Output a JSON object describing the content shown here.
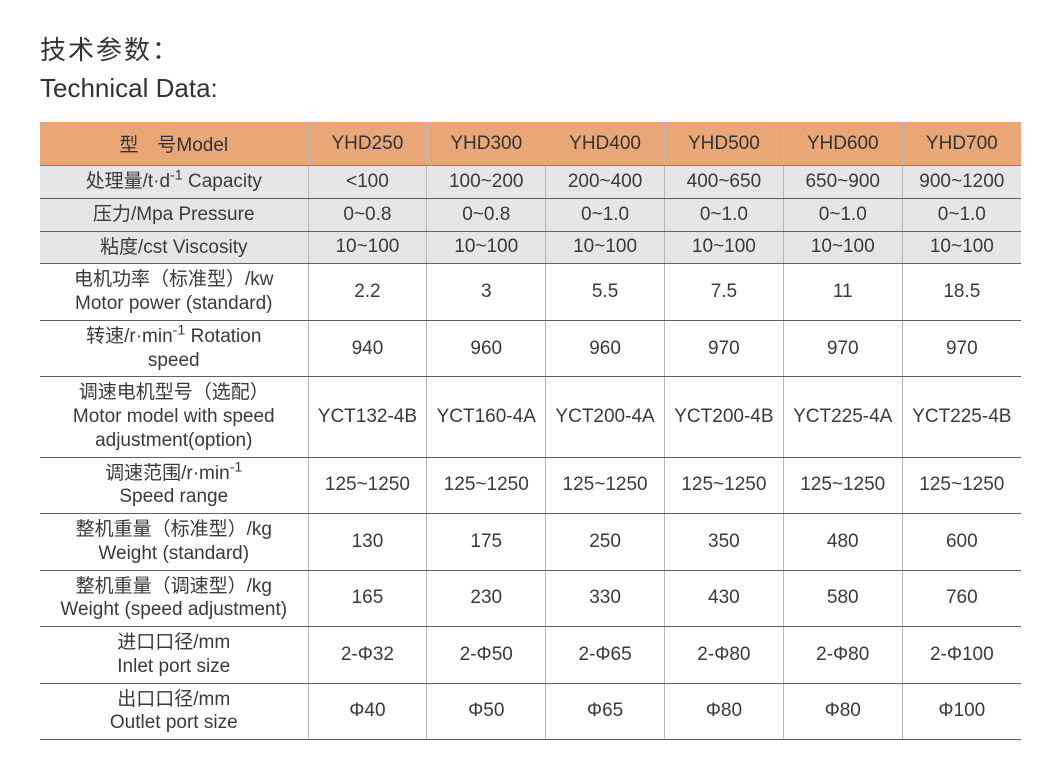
{
  "title_cn": "技术参数：",
  "title_en": "Technical Data:",
  "table": {
    "header_label": "型　号Model",
    "models": [
      "YHD250",
      "YHD300",
      "YHD400",
      "YHD500",
      "YHD600",
      "YHD700"
    ],
    "rows": [
      {
        "shade": "gray",
        "label_html": "处理量/t·d<span class=\"sup\">-1</span> Capacity",
        "cells": [
          "<100",
          "100~200",
          "200~400",
          "400~650",
          "650~900",
          "900~1200"
        ]
      },
      {
        "shade": "gray",
        "label_html": "压力/Mpa  Pressure",
        "cells": [
          "0~0.8",
          "0~0.8",
          "0~1.0",
          "0~1.0",
          "0~1.0",
          "0~1.0"
        ]
      },
      {
        "shade": "gray",
        "label_html": "粘度/cst   Viscosity",
        "cells": [
          "10~100",
          "10~100",
          "10~100",
          "10~100",
          "10~100",
          "10~100"
        ]
      },
      {
        "shade": "white",
        "label_html": "电机功率（标准型）/kw<br>Motor power (standard)",
        "cells": [
          "2.2",
          "3",
          "5.5",
          "7.5",
          "11",
          "18.5"
        ]
      },
      {
        "shade": "white",
        "label_html": "转速/r·min<span class=\"sup\">-1</span>  Rotation<br>speed",
        "cells": [
          "940",
          "960",
          "960",
          "970",
          "970",
          "970"
        ]
      },
      {
        "shade": "white",
        "label_html": "调速电机型号（选配）<br>Motor model with speed<br>adjustment(option)",
        "cells": [
          "YCT132-4B",
          "YCT160-4A",
          "YCT200-4A",
          "YCT200-4B",
          "YCT225-4A",
          "YCT225-4B"
        ]
      },
      {
        "shade": "white",
        "label_html": "调速范围/r·min<span class=\"sup\">-1</span><br>Speed range",
        "cells": [
          "125~1250",
          "125~1250",
          "125~1250",
          "125~1250",
          "125~1250",
          "125~1250"
        ]
      },
      {
        "shade": "white",
        "label_html": "整机重量（标准型）/kg<br>Weight (standard)",
        "cells": [
          "130",
          "175",
          "250",
          "350",
          "480",
          "600"
        ]
      },
      {
        "shade": "white",
        "label_html": "整机重量（调速型）/kg<br>Weight (speed adjustment)",
        "cells": [
          "165",
          "230",
          "330",
          "430",
          "580",
          "760"
        ]
      },
      {
        "shade": "white",
        "label_html": "进口口径/mm<br>Inlet port size",
        "cells": [
          "2-Φ32",
          "2-Φ50",
          "2-Φ65",
          "2-Φ80",
          "2-Φ80",
          "2-Φ100"
        ]
      },
      {
        "shade": "white",
        "label_html": "出口口径/mm<br>Outlet port size",
        "cells": [
          "Φ40",
          "Φ50",
          "Φ65",
          "Φ80",
          "Φ80",
          "Φ100"
        ]
      }
    ]
  },
  "colors": {
    "header_bg": "#e9a778",
    "gray_bg": "#e6e6e6",
    "white_bg": "#ffffff",
    "border_v": "#b8b8b8",
    "border_h": "#606060",
    "text": "#3a3a3a"
  },
  "typography": {
    "title_fontsize": 26,
    "cell_fontsize": 19
  }
}
